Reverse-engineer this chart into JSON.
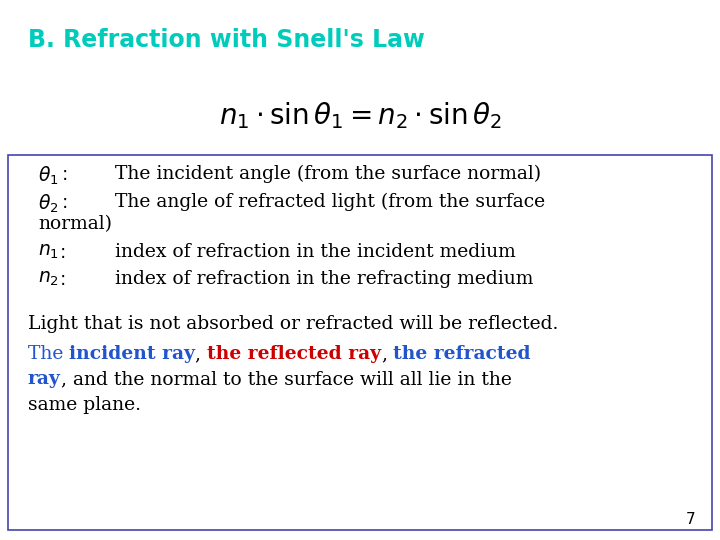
{
  "title": "B. Refraction with Snell's Law",
  "title_color": "#00CCBB",
  "bg_color": "#FFFFFF",
  "box_edge_color": "#4444AA",
  "formula": "$n_1 \\cdot \\sin\\theta_1 = n_2 \\cdot \\sin\\theta_2$",
  "page_num": "7",
  "text_color": "#000000",
  "blue_color": "#2255CC",
  "red_color": "#CC0000",
  "font_size_title": 17,
  "font_size_formula": 20,
  "font_size_body": 13.5,
  "font_size_page": 11
}
